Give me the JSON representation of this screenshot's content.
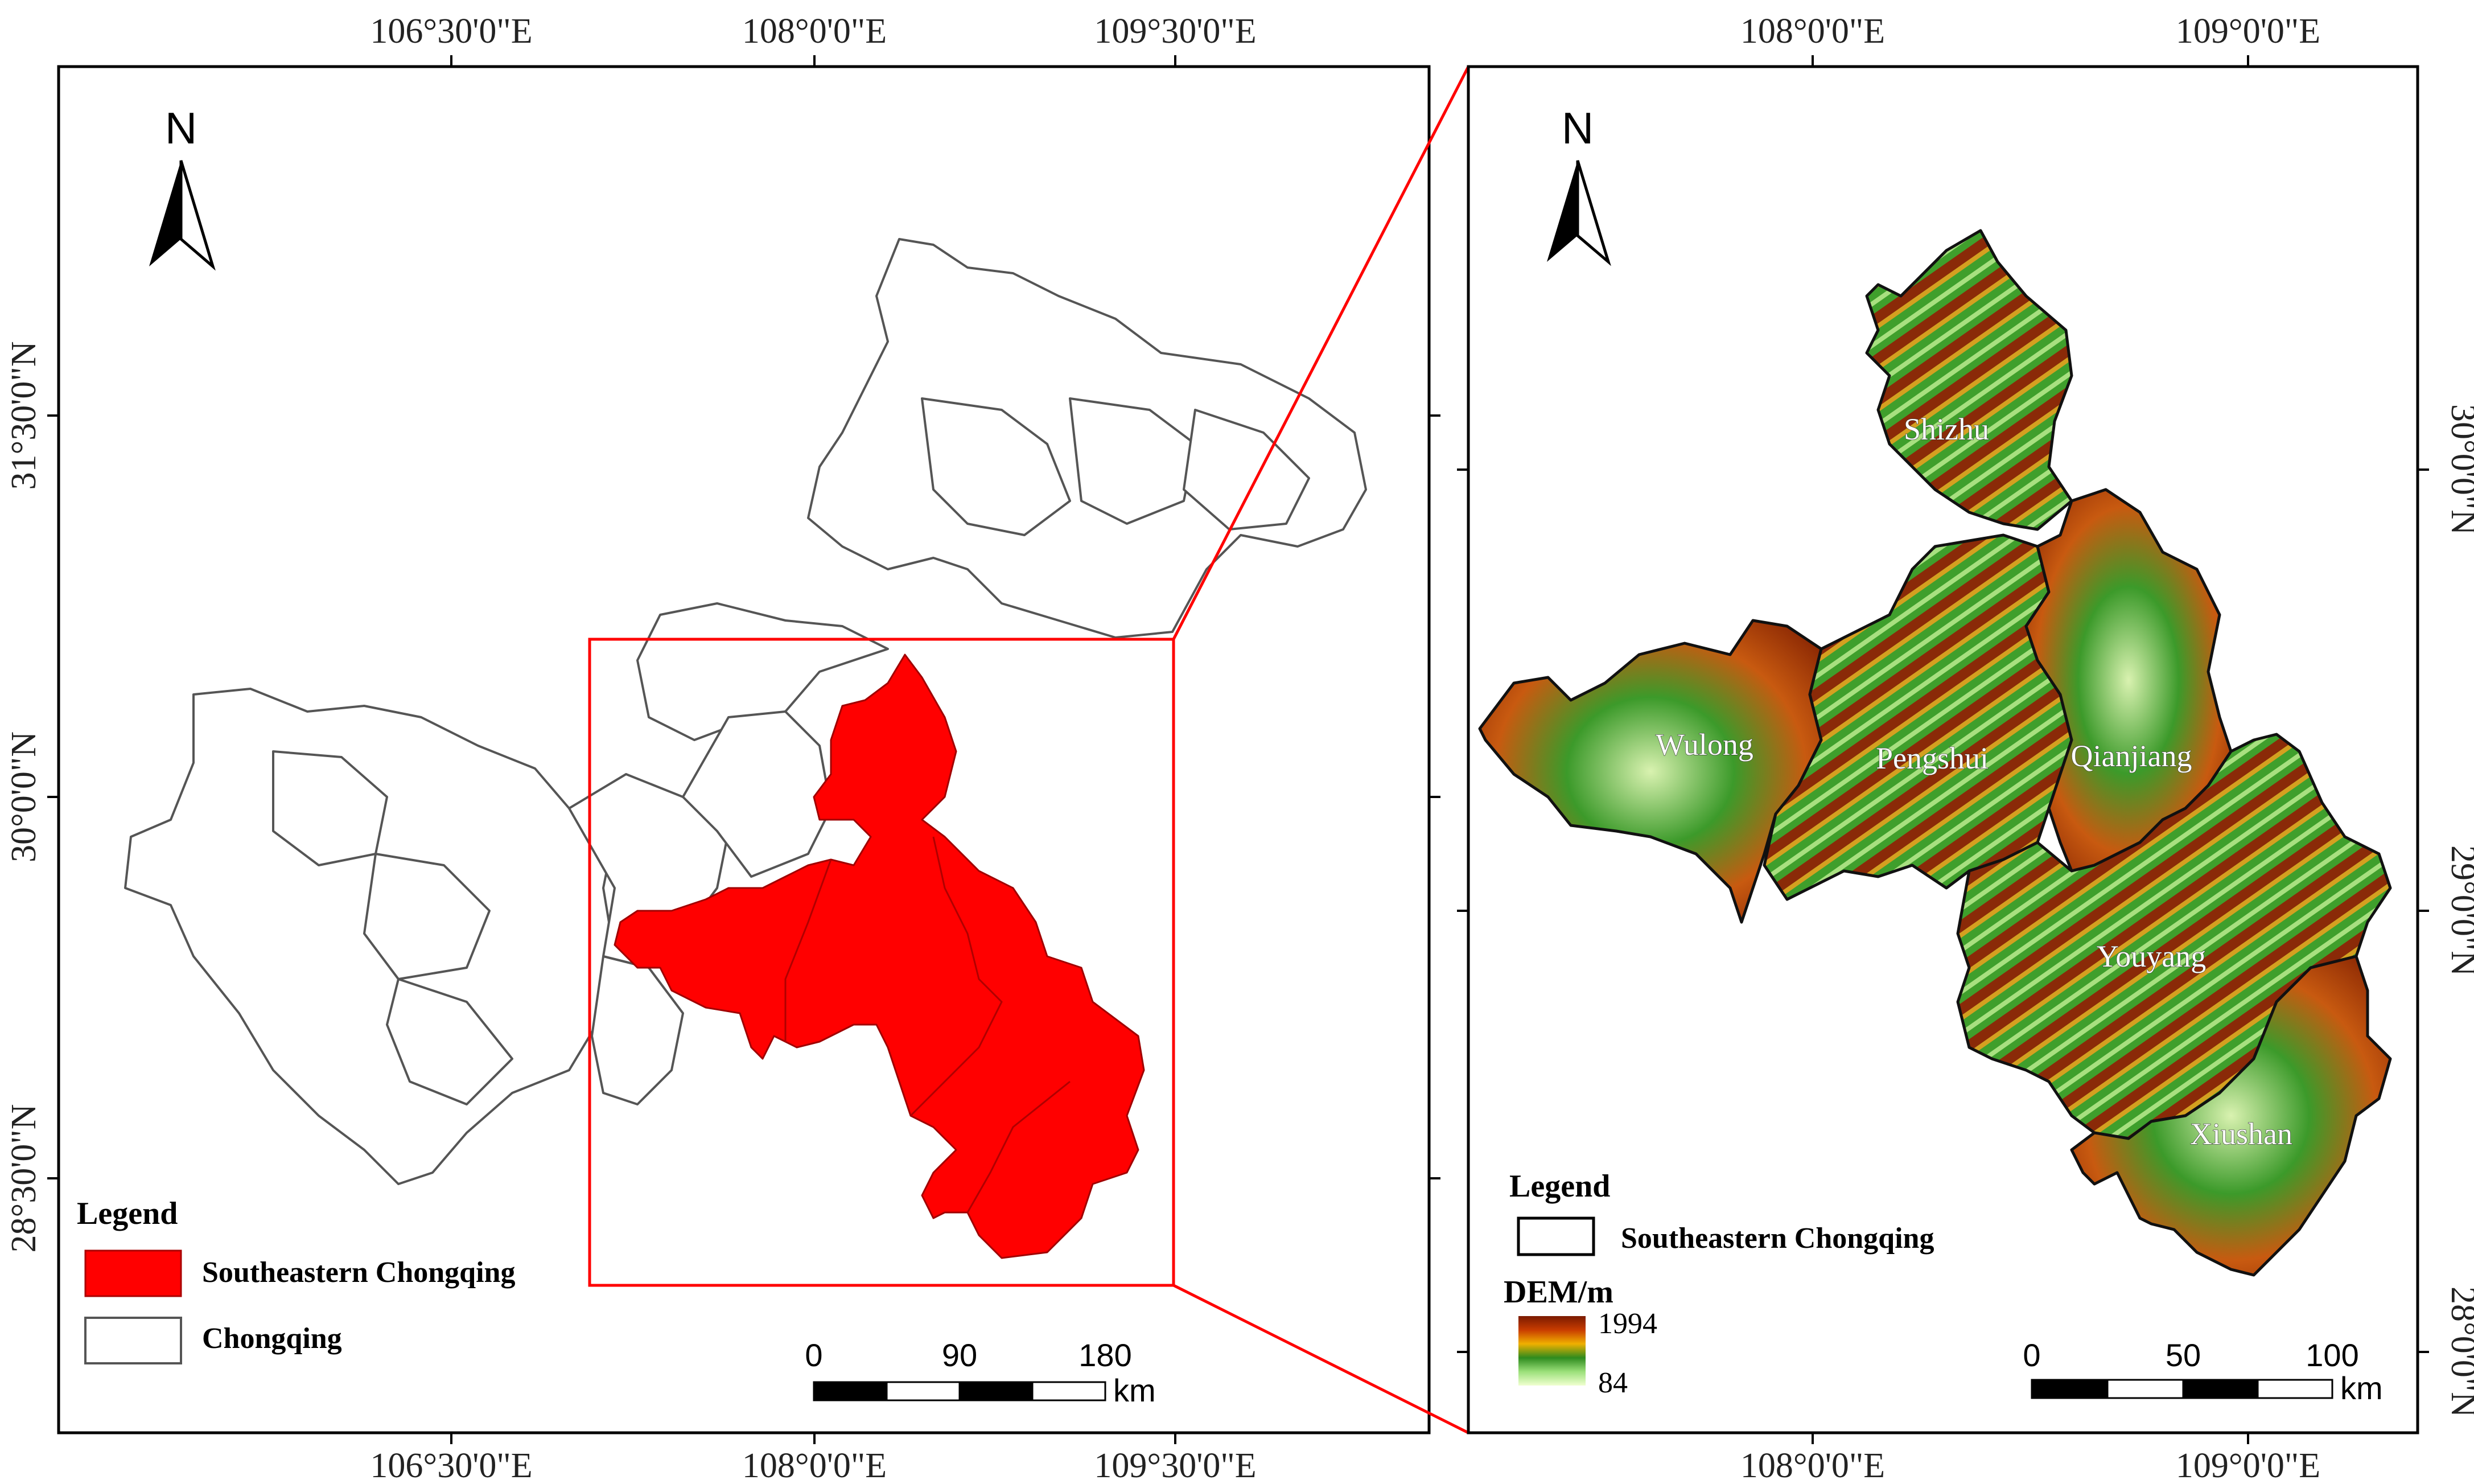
{
  "left_map": {
    "top_lon_labels": [
      "106°30'0\"E",
      "108°0'0\"E",
      "109°30'0\"E"
    ],
    "bottom_lon_labels": [
      "106°30'0\"E",
      "108°0'0\"E",
      "109°30'0\"E"
    ],
    "lat_labels": [
      "31°30'0\"N",
      "30°0'0\"N",
      "28°30'0\"N"
    ],
    "north_label": "N",
    "legend": {
      "title": "Legend",
      "items": [
        {
          "label": "Southeastern Chongqing",
          "color": "#ff0000"
        },
        {
          "label": "Chongqing",
          "color": "#ffffff"
        }
      ]
    },
    "scale": {
      "ticks": [
        "0",
        "90",
        "180"
      ],
      "unit": "km"
    }
  },
  "right_map": {
    "top_lon_labels": [
      "108°0'0\"E",
      "109°0'0\"E"
    ],
    "bottom_lon_labels": [
      "108°0'0\"E",
      "109°0'0\"E"
    ],
    "lat_labels": [
      "30°0'0\"N",
      "29°0'0\"N",
      "28°0'0\"N"
    ],
    "north_label": "N",
    "counties": [
      "Shizhu",
      "Wulong",
      "Pengshui",
      "Qianjiang",
      "Youyang",
      "Xiushan"
    ],
    "legend": {
      "title": "Legend",
      "boundary_label": "Southeastern Chongqing",
      "dem_title": "DEM/m",
      "dem_max": "1994",
      "dem_min": "84",
      "dem_colors": [
        "#7a1a00",
        "#c83c00",
        "#f0b000",
        "#2e8b1e",
        "#9be07a",
        "#f0ffd0"
      ]
    },
    "scale": {
      "ticks": [
        "0",
        "50",
        "100"
      ],
      "unit": "km"
    }
  },
  "colors": {
    "highlight": "#ff0000",
    "frame": "#000000",
    "boundary": "#555555"
  }
}
